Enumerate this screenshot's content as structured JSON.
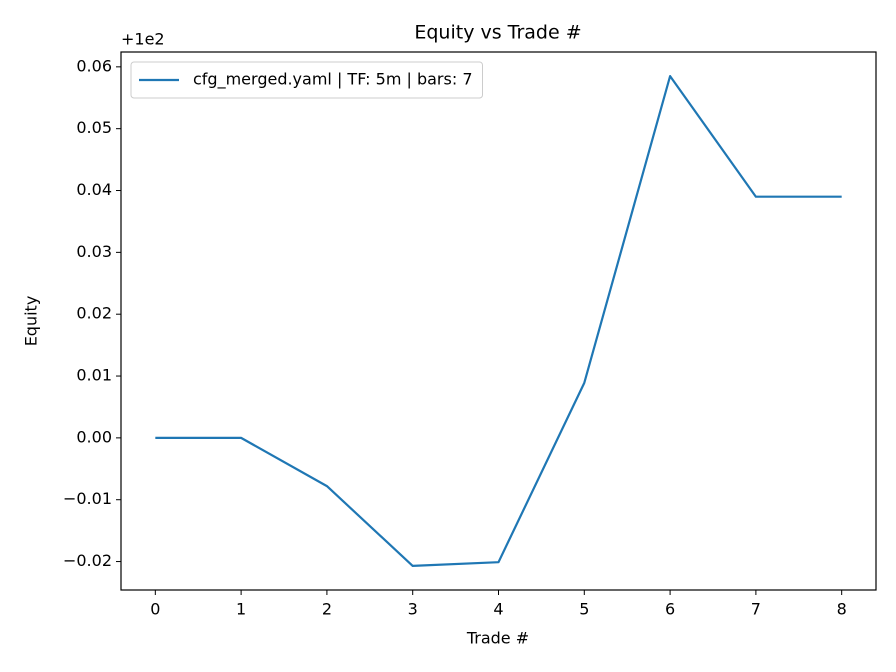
{
  "chart_data": {
    "type": "line",
    "title": "Equity vs Trade #",
    "xlabel": "Trade #",
    "ylabel": "Equity",
    "y_offset_label": "+1e2",
    "x": [
      0,
      1,
      2,
      3,
      4,
      5,
      6,
      7,
      8
    ],
    "series": [
      {
        "name": "cfg_merged.yaml | TF: 5m | bars: 7",
        "color": "#1f77b4",
        "values": [
          0,
          0,
          -0.0078,
          -0.0207,
          -0.0201,
          0.0089,
          0.0585,
          0.039,
          0.039
        ]
      }
    ],
    "xlim": [
      -0.4,
      8.4
    ],
    "xticks": [
      0,
      1,
      2,
      3,
      4,
      5,
      6,
      7,
      8
    ],
    "ylim": [
      -0.0246,
      0.0624
    ],
    "yticks": [
      {
        "value": -0.02,
        "label": "−0.02"
      },
      {
        "value": -0.01,
        "label": "−0.01"
      },
      {
        "value": 0,
        "label": "0.00"
      },
      {
        "value": 0.01,
        "label": "0.01"
      },
      {
        "value": 0.02,
        "label": "0.02"
      },
      {
        "value": 0.03,
        "label": "0.03"
      },
      {
        "value": 0.04,
        "label": "0.04"
      },
      {
        "value": 0.05,
        "label": "0.05"
      },
      {
        "value": 0.06,
        "label": "0.06"
      }
    ],
    "grid": false,
    "legend": "upper left"
  }
}
